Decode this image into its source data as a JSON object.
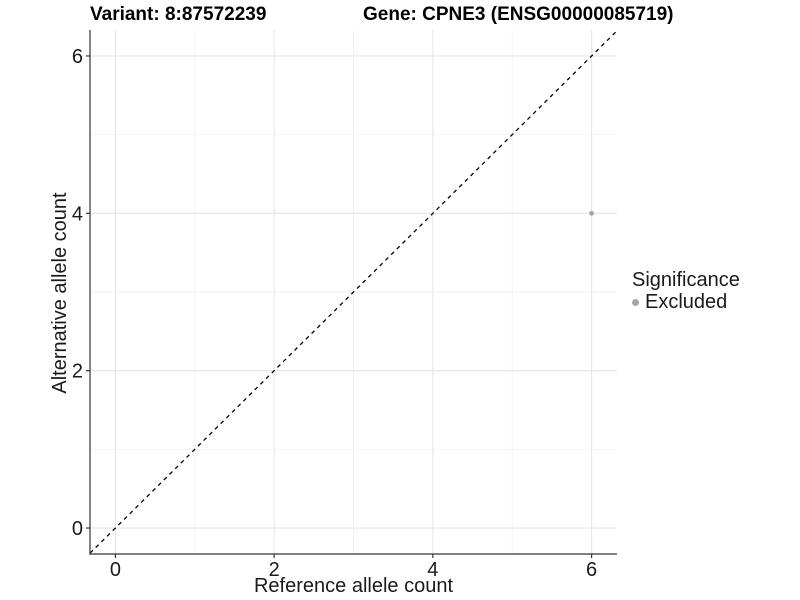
{
  "titles": {
    "variant": "Variant: 8:87572239",
    "gene": "Gene: CPNE3 (ENSG00000085719)"
  },
  "chart_data": {
    "type": "scatter",
    "title_left": "Variant: 8:87572239",
    "title_right": "Gene: CPNE3 (ENSG00000085719)",
    "xlabel": "Reference allele count",
    "ylabel": "Alternative allele count",
    "xlim": [
      -0.32,
      6.32
    ],
    "ylim": [
      -0.33,
      6.33
    ],
    "xticks": [
      0,
      2,
      4,
      6
    ],
    "yticks": [
      0,
      2,
      4,
      6
    ],
    "minor_xticks": [
      1,
      3,
      5
    ],
    "minor_yticks": [
      1,
      3,
      5
    ],
    "grid": true,
    "points": [
      {
        "x": 6,
        "y": 4,
        "series": "Excluded"
      }
    ],
    "abline": {
      "slope": 1,
      "intercept": 0,
      "style": "dashed",
      "color": "#000000"
    },
    "legend": {
      "title": "Significance",
      "position": "right",
      "entries": [
        {
          "label": "Excluded",
          "color": "#a6a6a6"
        }
      ]
    }
  }
}
